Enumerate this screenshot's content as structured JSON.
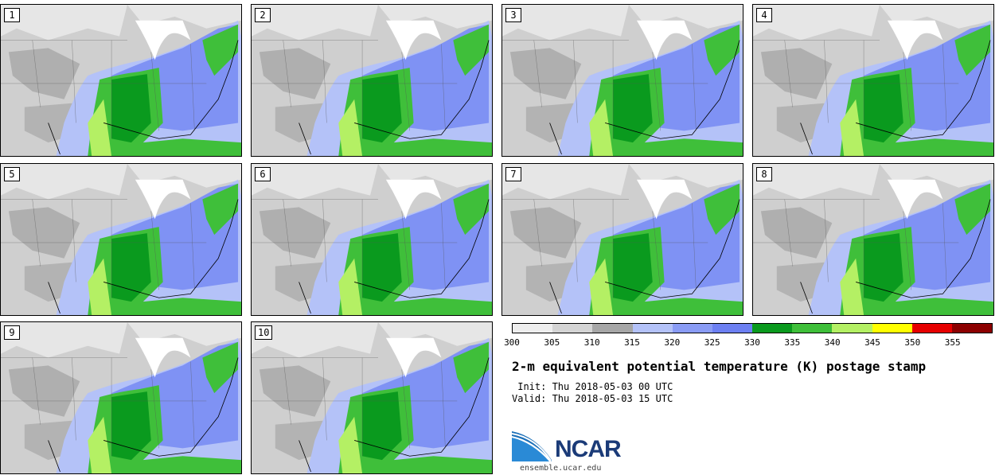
{
  "panels": [
    {
      "label": "1"
    },
    {
      "label": "2"
    },
    {
      "label": "3"
    },
    {
      "label": "4"
    },
    {
      "label": "5"
    },
    {
      "label": "6"
    },
    {
      "label": "7"
    },
    {
      "label": "8"
    },
    {
      "label": "9"
    },
    {
      "label": "10"
    }
  ],
  "colorbar": {
    "colors": [
      "#eeeeee",
      "#d4d4d4",
      "#a6a6a6",
      "#b4c2f8",
      "#8a9cf5",
      "#6d80f2",
      "#0a9a1e",
      "#3fbf3a",
      "#b4f064",
      "#ffff00",
      "#e60000",
      "#8c0000"
    ],
    "ticks": [
      "300",
      "305",
      "310",
      "315",
      "320",
      "325",
      "330",
      "335",
      "340",
      "345",
      "350",
      "355"
    ]
  },
  "title": "2-m equivalent potential temperature (K) postage stamp",
  "init": " Init: Thu 2018-05-03 00 UTC",
  "valid": "Valid: Thu 2018-05-03 15 UTC",
  "logo": {
    "text": "NCAR",
    "url": "ensemble.ucar.edu"
  },
  "map_colors": {
    "cold_light": "#e6e6e6",
    "cold_mid": "#cfcfcf",
    "cold_dark": "#a6a6a6",
    "blue_light": "#b4c2f8",
    "blue_mid": "#7f92f4",
    "green_dark": "#0a9a1e",
    "green_mid": "#3fbf3a",
    "green_light": "#b4f064",
    "lake": "#ffffff"
  }
}
